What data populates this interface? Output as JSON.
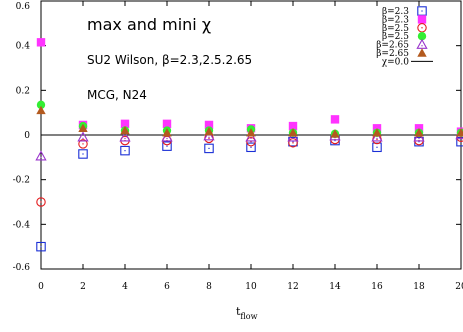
{
  "chart_data": {
    "type": "scatter",
    "annotations": [
      "max and mini χ",
      "SU2 Wilson, β=2.3,2.5.2.65",
      "MCG, N24"
    ],
    "xlabel": "t",
    "xlabel_sub": "flow",
    "ylabel": "",
    "xlim": [
      0,
      20
    ],
    "ylim": [
      -0.6,
      0.6
    ],
    "x_ticks": [
      0,
      2,
      4,
      6,
      8,
      10,
      12,
      14,
      16,
      18,
      20
    ],
    "y_ticks": [
      -0.6,
      -0.4,
      -0.2,
      0,
      0.2,
      0.4,
      0.6
    ],
    "y_tick_labels": [
      "-0.6",
      "-0.4",
      "-0.2",
      "0",
      "0.2",
      "0.4",
      "0.6"
    ],
    "grid": false,
    "legend_position": "top-right",
    "series": [
      {
        "name": "β=2.3",
        "marker": "open-square",
        "color": "#1a2fd6",
        "x": [
          0,
          2,
          4,
          6,
          8,
          10,
          12,
          14,
          16,
          18,
          20
        ],
        "y": [
          -0.5,
          -0.085,
          -0.07,
          -0.05,
          -0.06,
          -0.055,
          -0.03,
          -0.025,
          -0.055,
          -0.03,
          -0.03
        ]
      },
      {
        "name": "β=2.3",
        "marker": "filled-square",
        "color": "#ff33ff",
        "x": [
          0,
          2,
          4,
          6,
          8,
          10,
          12,
          14,
          16,
          18,
          20
        ],
        "y": [
          0.415,
          0.045,
          0.05,
          0.05,
          0.045,
          0.03,
          0.04,
          0.07,
          0.03,
          0.03,
          0.015
        ]
      },
      {
        "name": "β=2.5",
        "marker": "open-circle",
        "color": "#e41a1c",
        "x": [
          0,
          2,
          4,
          6,
          8,
          10,
          12,
          14,
          16,
          18,
          20
        ],
        "y": [
          -0.3,
          -0.04,
          -0.025,
          -0.025,
          -0.015,
          -0.03,
          -0.035,
          -0.02,
          -0.02,
          -0.025,
          -0.01
        ]
      },
      {
        "name": "β=2.5",
        "marker": "filled-circle",
        "color": "#33ee33",
        "x": [
          0,
          2,
          4,
          6,
          8,
          10,
          12,
          14,
          16,
          18,
          20
        ],
        "y": [
          0.135,
          0.04,
          0.02,
          0.02,
          0.02,
          0.025,
          0.01,
          0.005,
          0.01,
          0.01,
          0.01
        ]
      },
      {
        "name": "β=2.65",
        "marker": "open-triangle",
        "color": "#9933cc",
        "x": [
          0,
          2,
          4,
          6,
          8,
          10,
          12,
          14,
          16,
          18,
          20
        ],
        "y": [
          -0.095,
          -0.01,
          -0.01,
          -0.01,
          -0.005,
          -0.01,
          -0.01,
          -0.005,
          -0.01,
          -0.01,
          0
        ]
      },
      {
        "name": "β=2.65",
        "marker": "filled-triangle",
        "color": "#b35a1f",
        "x": [
          0,
          2,
          4,
          6,
          8,
          10,
          12,
          14,
          16,
          18,
          20
        ],
        "y": [
          0.11,
          0.03,
          0.02,
          0.01,
          0.015,
          0.01,
          0.01,
          0.005,
          0.01,
          0.01,
          0.01
        ]
      },
      {
        "name": "χ=0.0",
        "marker": "line",
        "color": "#000000",
        "x": [
          0,
          20
        ],
        "y": [
          0,
          0
        ]
      }
    ]
  }
}
